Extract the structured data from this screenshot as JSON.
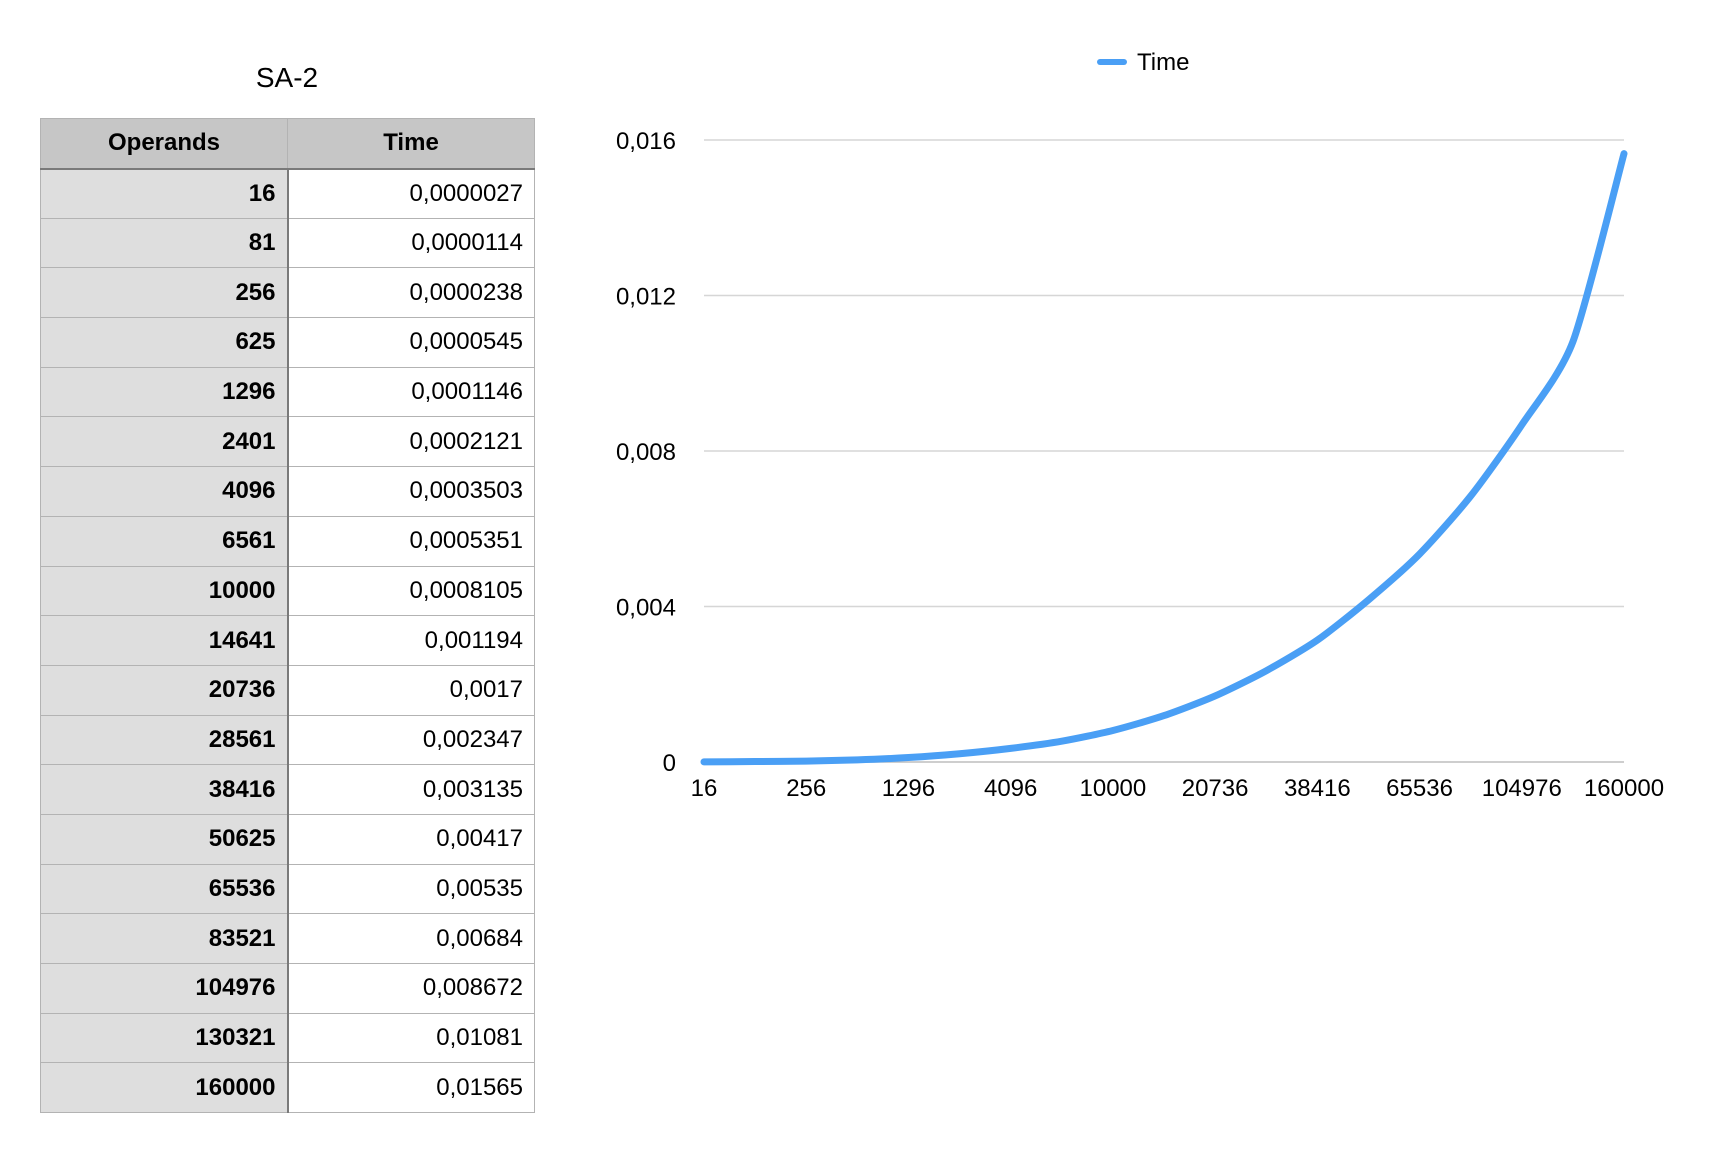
{
  "table": {
    "title": "SA-2",
    "headers": [
      "Operands",
      "Time"
    ],
    "rows": [
      [
        "16",
        "0,0000027"
      ],
      [
        "81",
        "0,0000114"
      ],
      [
        "256",
        "0,0000238"
      ],
      [
        "625",
        "0,0000545"
      ],
      [
        "1296",
        "0,0001146"
      ],
      [
        "2401",
        "0,0002121"
      ],
      [
        "4096",
        "0,0003503"
      ],
      [
        "6561",
        "0,0005351"
      ],
      [
        "10000",
        "0,0008105"
      ],
      [
        "14641",
        "0,001194"
      ],
      [
        "20736",
        "0,0017"
      ],
      [
        "28561",
        "0,002347"
      ],
      [
        "38416",
        "0,003135"
      ],
      [
        "50625",
        "0,00417"
      ],
      [
        "65536",
        "0,00535"
      ],
      [
        "83521",
        "0,00684"
      ],
      [
        "104976",
        "0,008672"
      ],
      [
        "130321",
        "0,01081"
      ],
      [
        "160000",
        "0,01565"
      ]
    ]
  },
  "chart_data": {
    "type": "line",
    "categories": [
      "16",
      "81",
      "256",
      "625",
      "1296",
      "2401",
      "4096",
      "6561",
      "10000",
      "14641",
      "20736",
      "28561",
      "38416",
      "50625",
      "65536",
      "83521",
      "104976",
      "130321",
      "160000"
    ],
    "x_tick_labels": [
      "16",
      "256",
      "1296",
      "4096",
      "10000",
      "20736",
      "38416",
      "65536",
      "104976",
      "160000"
    ],
    "series": [
      {
        "name": "Time",
        "color": "#4a9ff5",
        "values": [
          2.7e-06,
          1.14e-05,
          2.38e-05,
          5.45e-05,
          0.0001146,
          0.0002121,
          0.0003503,
          0.0005351,
          0.0008105,
          0.001194,
          0.0017,
          0.002347,
          0.003135,
          0.00417,
          0.00535,
          0.00684,
          0.008672,
          0.01081,
          0.01565
        ]
      }
    ],
    "ylim": [
      0,
      0.016
    ],
    "y_ticks": [
      0,
      0.004,
      0.008,
      0.012,
      0.016
    ],
    "y_tick_labels": [
      "0",
      "0,004",
      "0,008",
      "0,012",
      "0,016"
    ],
    "grid": true,
    "legend": "top-center",
    "title": "",
    "xlabel": "",
    "ylabel": ""
  }
}
